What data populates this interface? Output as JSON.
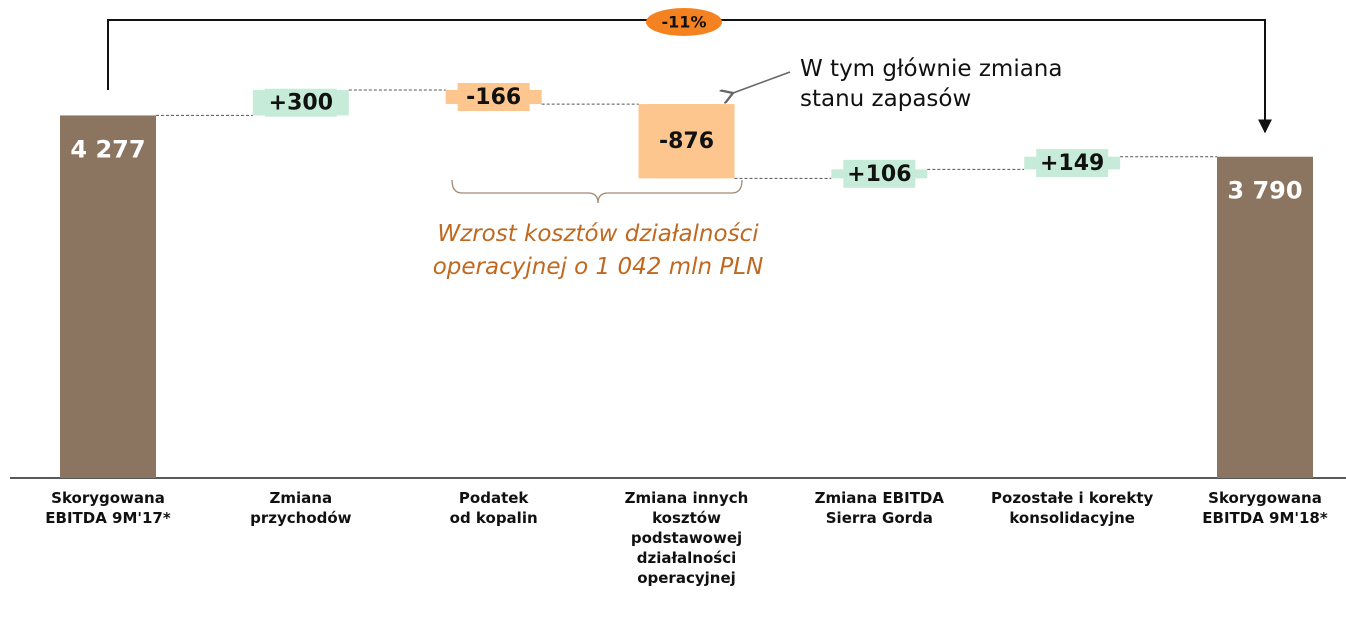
{
  "chart_data": {
    "type": "waterfall",
    "categories": [
      "Skorygowana\nEBITDA 9M'17*",
      "Zmiana\nprzychodów",
      "Podatek\nod kopalin",
      "Zmiana innych\nkosztów\npodstawowej\ndziałalności\noperacyjnej",
      "Zmiana EBITDA\nSierra Gorda",
      "Pozostałe i korekty\nkonsolidacyjne",
      "Skorygowana\nEBITDA 9M'18*"
    ],
    "values": [
      4277,
      300,
      -166,
      -876,
      106,
      149,
      3790
    ],
    "value_labels": [
      "4 277",
      "+300",
      "-166",
      "-876",
      "+106",
      "+149",
      "3 790"
    ],
    "colors": {
      "total": "#8b7560",
      "increase": "#c6ecd9",
      "decrease": "#fcc68e"
    },
    "change_label": "-11%",
    "annotations": [
      "W tym głównie zmiana\nstanu zapasów",
      "Wzrost kosztów działalności\noperacyjnej o 1 042 mln PLN"
    ]
  }
}
